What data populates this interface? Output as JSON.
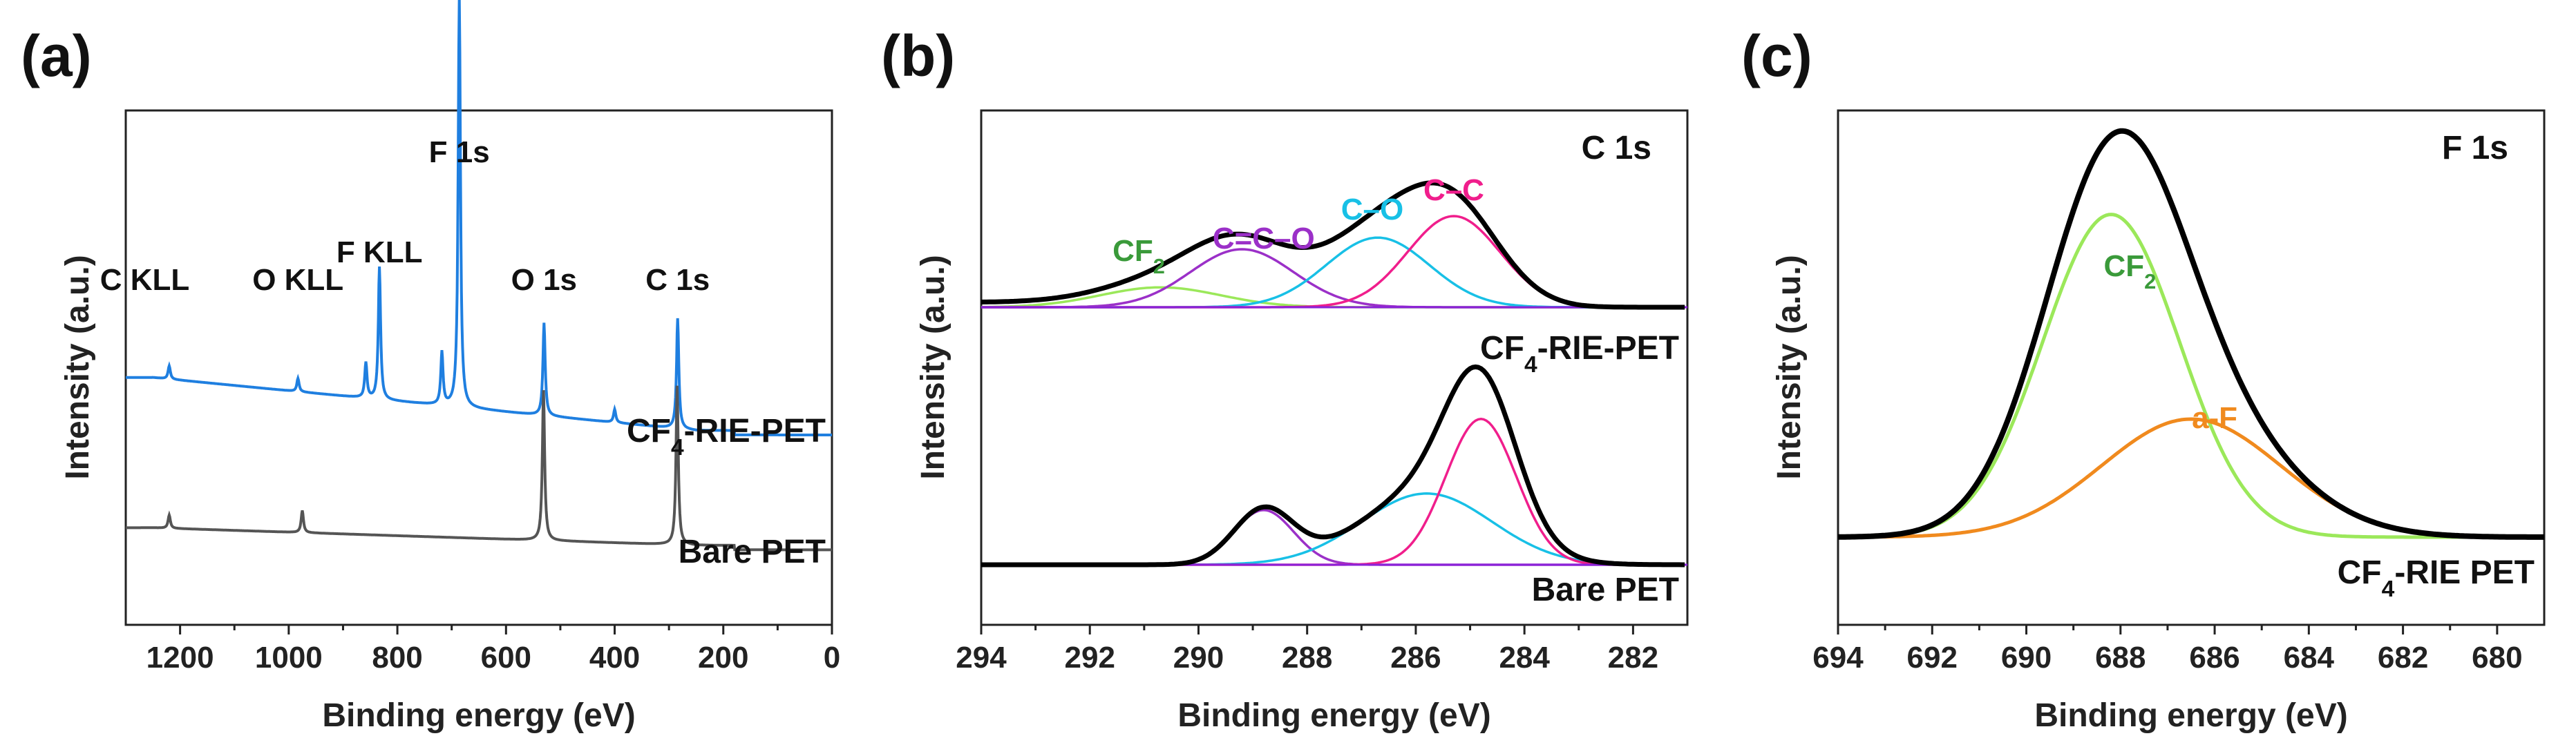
{
  "colors": {
    "blue": "#1f7fe0",
    "gray": "#555555",
    "black": "#000000",
    "green": "#3a9a3a",
    "purple": "#9b30c8",
    "cyan": "#18c0e6",
    "pink": "#f01e8c",
    "lightgreen": "#9be85a",
    "orange": "#f08a1e",
    "violet": "#8a22d8"
  },
  "chart_data": [
    {
      "type": "line",
      "panel_label": "(a)",
      "title": "",
      "xlabel": "Binding energy (eV)",
      "ylabel": "Intensity (a.u.)",
      "xlim": [
        1300,
        0
      ],
      "x_ticks": [
        1200,
        1000,
        800,
        600,
        400,
        200,
        0
      ],
      "peak_labels": [
        {
          "text": "C KLL",
          "x": 1265
        },
        {
          "text": "O KLL",
          "x": 983
        },
        {
          "text": "F KLL",
          "x": 833
        },
        {
          "text": "F 1s",
          "x": 686
        },
        {
          "text": "O 1s",
          "x": 530
        },
        {
          "text": "C 1s",
          "x": 284
        }
      ],
      "series": [
        {
          "name": "CF4-RIE-PET",
          "label": [
            "CF",
            "4",
            "-RIE-PET"
          ],
          "color": "#1f7fe0",
          "baseline": 0.28,
          "peaks": [
            {
              "x": 1220,
              "h": 0.03
            },
            {
              "x": 983,
              "h": 0.03
            },
            {
              "x": 858,
              "h": 0.08
            },
            {
              "x": 833,
              "h": 0.3
            },
            {
              "x": 718,
              "h": 0.12
            },
            {
              "x": 686,
              "h": 0.93
            },
            {
              "x": 530,
              "h": 0.21
            },
            {
              "x": 400,
              "h": 0.03
            },
            {
              "x": 284,
              "h": 0.25
            }
          ]
        },
        {
          "name": "Bare PET",
          "label": [
            "Bare PET"
          ],
          "color": "#555555",
          "baseline": 0.0,
          "peaks": [
            {
              "x": 1220,
              "h": 0.03
            },
            {
              "x": 975,
              "h": 0.05
            },
            {
              "x": 531,
              "h": 0.34
            },
            {
              "x": 285,
              "h": 0.36
            }
          ]
        }
      ]
    },
    {
      "type": "line",
      "panel_label": "(b)",
      "title": "C 1s",
      "xlabel": "Binding energy (eV)",
      "ylabel": "Intensity (a.u.)",
      "xlim": [
        294,
        281
      ],
      "x_ticks": [
        294,
        292,
        290,
        288,
        286,
        284,
        282
      ],
      "groups": [
        {
          "name": "CF4-RIE-PET",
          "label": [
            "CF",
            "4",
            "-RIE-PET"
          ],
          "offset": 2.0,
          "components": [
            {
              "name": "CF2",
              "label": [
                "CF",
                "2",
                ""
              ],
              "color": "#9be85a",
              "center": 290.7,
              "height": 0.12,
              "sigma": 1.1
            },
            {
              "name": "C=C–O",
              "label": [
                "C=C–O"
              ],
              "color": "#9b30c8",
              "center": 289.2,
              "height": 0.35,
              "sigma": 0.95
            },
            {
              "name": "C–O",
              "label": [
                "C–O"
              ],
              "color": "#18c0e6",
              "center": 286.7,
              "height": 0.42,
              "sigma": 0.95
            },
            {
              "name": "C–C",
              "label": [
                "C–C"
              ],
              "color": "#f01e8c",
              "center": 285.3,
              "height": 0.55,
              "sigma": 0.85
            }
          ],
          "label_colors": [
            "#3a9a3a",
            "#9b30c8",
            "#18c0e6",
            "#f01e8c"
          ]
        },
        {
          "name": "Bare PET",
          "label": [
            "Bare PET"
          ],
          "offset": 0.0,
          "components": [
            {
              "name": "C=C–O",
              "label": [
                "C=C–O"
              ],
              "color": "#9b30c8",
              "center": 288.8,
              "height": 0.33,
              "sigma": 0.55
            },
            {
              "name": "C–O",
              "label": [
                "C–O"
              ],
              "color": "#18c0e6",
              "center": 285.8,
              "height": 0.43,
              "sigma": 1.2
            },
            {
              "name": "C–C",
              "label": [
                "C–C"
              ],
              "color": "#f01e8c",
              "center": 284.8,
              "height": 0.88,
              "sigma": 0.65
            }
          ]
        }
      ]
    },
    {
      "type": "line",
      "panel_label": "(c)",
      "title": "F 1s",
      "xlabel": "Binding energy (eV)",
      "ylabel": "Intensity (a.u.)",
      "xlim": [
        694,
        679
      ],
      "x_ticks": [
        694,
        692,
        690,
        688,
        686,
        684,
        682,
        680
      ],
      "sample_label": [
        "CF",
        "4",
        "-RIE PET"
      ],
      "components": [
        {
          "name": "CF2",
          "label": [
            "CF",
            "2",
            ""
          ],
          "color": "#9be85a",
          "label_color": "#3a9a3a",
          "center": 688.2,
          "height": 0.82,
          "sigma": 1.45
        },
        {
          "name": "a-F",
          "label": [
            "a-F"
          ],
          "color": "#f08a1e",
          "label_color": "#f08a1e",
          "center": 686.5,
          "height": 0.3,
          "sigma": 1.9
        }
      ]
    }
  ]
}
